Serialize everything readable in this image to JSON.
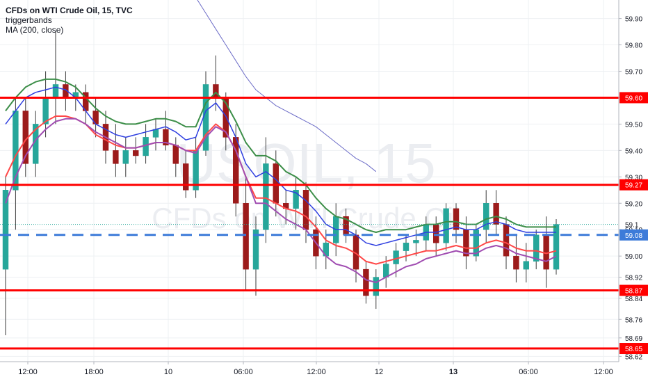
{
  "legend": {
    "title": "CFDs on WTI Crude Oil, 15, TVC",
    "indicator1": "triggerbands",
    "indicator2": "MA (200, close)"
  },
  "watermark": {
    "symbol": "USOIL, 15",
    "description": "CFDs on WTI Crude Oil"
  },
  "colors": {
    "grid": "#eef0f3",
    "axis": "#b2b5be",
    "text": "#131722",
    "up": "#26a69a",
    "down": "#9c1b1b",
    "support_resistance": "#ff0000",
    "dashed_level": "#3d7bd9",
    "ma_fast_blue": "#2f3fe0",
    "ma_green": "#3c8e48",
    "ma_red": "#ff4747",
    "ma_purple": "#a04cb1",
    "ma_200": "#6c6cc7"
  },
  "chart_data": {
    "type": "candlestick",
    "y_axis": {
      "ticks": [
        "59.90",
        "59.80",
        "59.70",
        "59.60",
        "59.50",
        "59.40",
        "59.30",
        "59.20",
        "59.10",
        "59.00",
        "58.92",
        "58.84",
        "58.76",
        "58.69",
        "58.62"
      ],
      "range": [
        58.6,
        59.97
      ]
    },
    "x_axis": {
      "ticks": [
        "12:00",
        "18:00",
        "10",
        "06:00",
        "12:00",
        "12",
        "13",
        "06:00",
        "12:00"
      ],
      "bold_ticks": [
        "13"
      ]
    },
    "horizontal_levels": [
      {
        "label": "59.60",
        "value": 59.6,
        "style": "solid",
        "color": "#ff0000"
      },
      {
        "label": "59.27",
        "value": 59.27,
        "style": "solid",
        "color": "#ff0000"
      },
      {
        "label": "59.08",
        "value": 59.08,
        "style": "dashed",
        "color": "#3d7bd9"
      },
      {
        "label": "58.87",
        "value": 58.87,
        "style": "solid",
        "color": "#ff0000"
      },
      {
        "label": "58.65",
        "value": 58.65,
        "style": "solid",
        "color": "#ff0000"
      }
    ],
    "last_price": 59.12,
    "last_price_label": "59.1",
    "candles_approx": [
      {
        "o": 58.95,
        "h": 59.3,
        "l": 58.7,
        "c": 59.25
      },
      {
        "o": 59.25,
        "h": 59.6,
        "l": 59.1,
        "c": 59.55
      },
      {
        "o": 59.55,
        "h": 59.6,
        "l": 59.3,
        "c": 59.35
      },
      {
        "o": 59.35,
        "h": 59.55,
        "l": 59.3,
        "c": 59.5
      },
      {
        "o": 59.5,
        "h": 59.7,
        "l": 59.45,
        "c": 59.6
      },
      {
        "o": 59.6,
        "h": 59.85,
        "l": 59.5,
        "c": 59.65
      },
      {
        "o": 59.65,
        "h": 59.7,
        "l": 59.55,
        "c": 59.6
      },
      {
        "o": 59.6,
        "h": 59.65,
        "l": 59.55,
        "c": 59.62
      },
      {
        "o": 59.62,
        "h": 59.65,
        "l": 59.5,
        "c": 59.55
      },
      {
        "o": 59.55,
        "h": 59.6,
        "l": 59.45,
        "c": 59.5
      },
      {
        "o": 59.5,
        "h": 59.55,
        "l": 59.35,
        "c": 59.4
      },
      {
        "o": 59.4,
        "h": 59.5,
        "l": 59.3,
        "c": 59.35
      },
      {
        "o": 59.35,
        "h": 59.45,
        "l": 59.3,
        "c": 59.4
      },
      {
        "o": 59.4,
        "h": 59.45,
        "l": 59.35,
        "c": 59.38
      },
      {
        "o": 59.38,
        "h": 59.5,
        "l": 59.35,
        "c": 59.45
      },
      {
        "o": 59.45,
        "h": 59.52,
        "l": 59.4,
        "c": 59.48
      },
      {
        "o": 59.48,
        "h": 59.55,
        "l": 59.4,
        "c": 59.42
      },
      {
        "o": 59.42,
        "h": 59.45,
        "l": 59.3,
        "c": 59.35
      },
      {
        "o": 59.35,
        "h": 59.4,
        "l": 59.22,
        "c": 59.25
      },
      {
        "o": 59.25,
        "h": 59.45,
        "l": 59.22,
        "c": 59.4
      },
      {
        "o": 59.4,
        "h": 59.7,
        "l": 59.38,
        "c": 59.65
      },
      {
        "o": 59.65,
        "h": 59.76,
        "l": 59.55,
        "c": 59.6
      },
      {
        "o": 59.6,
        "h": 59.62,
        "l": 59.4,
        "c": 59.45
      },
      {
        "o": 59.45,
        "h": 59.5,
        "l": 59.15,
        "c": 59.2
      },
      {
        "o": 59.2,
        "h": 59.3,
        "l": 58.87,
        "c": 58.95
      },
      {
        "o": 58.95,
        "h": 59.15,
        "l": 58.85,
        "c": 59.1
      },
      {
        "o": 59.1,
        "h": 59.45,
        "l": 59.05,
        "c": 59.35
      },
      {
        "o": 59.35,
        "h": 59.4,
        "l": 59.15,
        "c": 59.2
      },
      {
        "o": 59.2,
        "h": 59.25,
        "l": 59.12,
        "c": 59.18
      },
      {
        "o": 59.18,
        "h": 59.3,
        "l": 59.1,
        "c": 59.25
      },
      {
        "o": 59.25,
        "h": 59.28,
        "l": 59.05,
        "c": 59.1
      },
      {
        "o": 59.1,
        "h": 59.15,
        "l": 58.95,
        "c": 59.0
      },
      {
        "o": 59.0,
        "h": 59.1,
        "l": 58.95,
        "c": 59.05
      },
      {
        "o": 59.05,
        "h": 59.2,
        "l": 59.0,
        "c": 59.15
      },
      {
        "o": 59.15,
        "h": 59.18,
        "l": 59.05,
        "c": 59.08
      },
      {
        "o": 59.08,
        "h": 59.1,
        "l": 58.9,
        "c": 58.95
      },
      {
        "o": 58.95,
        "h": 58.98,
        "l": 58.82,
        "c": 58.85
      },
      {
        "o": 58.85,
        "h": 58.95,
        "l": 58.8,
        "c": 58.92
      },
      {
        "o": 58.92,
        "h": 59.0,
        "l": 58.88,
        "c": 58.97
      },
      {
        "o": 58.97,
        "h": 59.05,
        "l": 58.92,
        "c": 59.02
      },
      {
        "o": 59.02,
        "h": 59.08,
        "l": 58.98,
        "c": 59.05
      },
      {
        "o": 59.05,
        "h": 59.1,
        "l": 59.0,
        "c": 59.06
      },
      {
        "o": 59.06,
        "h": 59.15,
        "l": 59.02,
        "c": 59.12
      },
      {
        "o": 59.12,
        "h": 59.15,
        "l": 59.0,
        "c": 59.05
      },
      {
        "o": 59.05,
        "h": 59.2,
        "l": 59.02,
        "c": 59.18
      },
      {
        "o": 59.18,
        "h": 59.2,
        "l": 59.05,
        "c": 59.1
      },
      {
        "o": 59.1,
        "h": 59.15,
        "l": 58.95,
        "c": 59.0
      },
      {
        "o": 59.0,
        "h": 59.12,
        "l": 58.98,
        "c": 59.1
      },
      {
        "o": 59.1,
        "h": 59.25,
        "l": 59.05,
        "c": 59.2
      },
      {
        "o": 59.2,
        "h": 59.25,
        "l": 59.08,
        "c": 59.12
      },
      {
        "o": 59.12,
        "h": 59.15,
        "l": 58.95,
        "c": 59.0
      },
      {
        "o": 59.0,
        "h": 59.08,
        "l": 58.9,
        "c": 58.95
      },
      {
        "o": 58.95,
        "h": 59.05,
        "l": 58.9,
        "c": 58.98
      },
      {
        "o": 58.98,
        "h": 59.1,
        "l": 58.95,
        "c": 59.08
      },
      {
        "o": 59.08,
        "h": 59.15,
        "l": 58.88,
        "c": 58.95
      },
      {
        "o": 58.95,
        "h": 59.14,
        "l": 58.93,
        "c": 59.12
      }
    ],
    "overlays": [
      {
        "name": "blue band",
        "color": "#2f3fe0",
        "values": [
          59.5,
          59.55,
          59.6,
          59.62,
          59.63,
          59.64,
          59.63,
          59.6,
          59.55,
          59.5,
          59.48,
          59.46,
          59.45,
          59.46,
          59.47,
          59.48,
          59.49,
          59.47,
          59.44,
          59.45,
          59.55,
          59.58,
          59.53,
          59.45,
          59.35,
          59.3,
          59.32,
          59.29,
          59.25,
          59.24,
          59.21,
          59.17,
          59.12,
          59.1,
          59.1,
          59.08,
          59.05,
          59.04,
          59.05,
          59.06,
          59.07,
          59.08,
          59.09,
          59.09,
          59.1,
          59.11,
          59.1,
          59.1,
          59.12,
          59.13,
          59.12,
          59.1,
          59.09,
          59.09,
          59.09,
          59.09
        ]
      },
      {
        "name": "green band",
        "color": "#3c8e48",
        "values": [
          59.55,
          59.6,
          59.64,
          59.66,
          59.67,
          59.67,
          59.66,
          59.64,
          59.6,
          59.56,
          59.53,
          59.51,
          59.5,
          59.5,
          59.51,
          59.52,
          59.52,
          59.51,
          59.49,
          59.49,
          59.58,
          59.62,
          59.58,
          59.51,
          59.43,
          59.38,
          59.38,
          59.36,
          59.32,
          59.3,
          59.27,
          59.22,
          59.18,
          59.15,
          59.14,
          59.12,
          59.1,
          59.09,
          59.1,
          59.1,
          59.1,
          59.11,
          59.12,
          59.12,
          59.13,
          59.13,
          59.12,
          59.12,
          59.14,
          59.15,
          59.14,
          59.12,
          59.11,
          59.11,
          59.11,
          59.11
        ]
      },
      {
        "name": "red band",
        "color": "#ff4747",
        "values": [
          59.3,
          59.38,
          59.44,
          59.48,
          59.51,
          59.53,
          59.53,
          59.52,
          59.5,
          59.46,
          59.44,
          59.42,
          59.41,
          59.41,
          59.42,
          59.43,
          59.43,
          59.42,
          59.4,
          59.4,
          59.46,
          59.5,
          59.47,
          59.4,
          59.3,
          59.22,
          59.22,
          59.2,
          59.18,
          59.17,
          59.15,
          59.11,
          59.06,
          59.04,
          59.03,
          59.01,
          58.98,
          58.97,
          58.98,
          58.99,
          59.0,
          59.01,
          59.02,
          59.02,
          59.03,
          59.04,
          59.03,
          59.03,
          59.05,
          59.06,
          59.05,
          59.03,
          59.02,
          59.02,
          59.01,
          59.02
        ]
      },
      {
        "name": "purple band",
        "color": "#a04cb1",
        "values": [
          59.2,
          59.3,
          59.38,
          59.44,
          59.48,
          59.51,
          59.52,
          59.52,
          59.5,
          59.47,
          59.45,
          59.43,
          59.41,
          59.41,
          59.42,
          59.43,
          59.43,
          59.42,
          59.4,
          59.39,
          59.45,
          59.49,
          59.47,
          59.4,
          59.3,
          59.2,
          59.2,
          59.17,
          59.14,
          59.12,
          59.1,
          59.05,
          59.0,
          58.97,
          58.96,
          58.94,
          58.91,
          58.9,
          58.92,
          58.94,
          58.96,
          58.97,
          58.99,
          59.0,
          59.01,
          59.02,
          59.01,
          59.01,
          59.03,
          59.04,
          59.03,
          59.01,
          59.0,
          58.99,
          58.98,
          59.0
        ]
      },
      {
        "name": "MA (200, close)",
        "color": "#6c6cc7",
        "values": [
          null,
          null,
          null,
          null,
          null,
          null,
          null,
          null,
          null,
          null,
          null,
          null,
          null,
          null,
          null,
          null,
          null,
          null,
          null,
          59.98,
          59.92,
          59.86,
          59.8,
          59.74,
          59.68,
          59.63,
          59.6,
          59.57,
          59.55,
          59.53,
          59.51,
          59.49,
          59.46,
          59.43,
          59.4,
          59.37,
          59.35,
          59.32,
          null,
          null,
          null,
          null,
          null,
          null,
          null,
          null,
          null,
          null,
          null,
          null,
          null,
          null,
          null,
          null,
          null,
          null
        ]
      }
    ]
  }
}
